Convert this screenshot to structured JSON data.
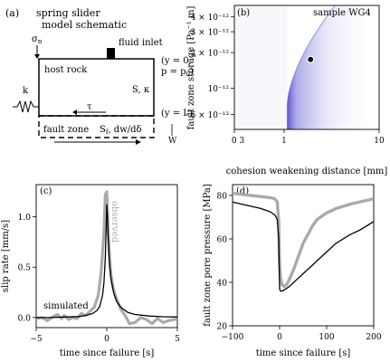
{
  "panel_a": {
    "letter": "(a)",
    "title_line1": "spring slider",
    "title_line2": "model schematic",
    "sigma_label": "σ",
    "sigma_sub": "n",
    "fluid_inlet": "fluid inlet",
    "host_rock": "host rock",
    "y0_line1": "(y = 0,",
    "y0_line2": "p = p",
    "y0_sub": "0",
    "y0_close": ")",
    "S_kappa": "S, κ",
    "k_label": "k",
    "tau_label": "τ",
    "yL_label": "(y = L)",
    "fault_zone": "fault zone",
    "Sf_label": "S",
    "Sf_sub": "f",
    "Sf_rest": ", dw/dδ",
    "W_label": "W"
  },
  "chart_data": [
    {
      "panel": "(b)",
      "type": "heatmap",
      "title": "",
      "annotation": "sample WG4",
      "xlabel": "cohesion weakening distance [mm]",
      "ylabel": "fault zone storage [Pa⁻¹ m]",
      "xscale": "log",
      "yscale": "log",
      "xlim": [
        0.3,
        10
      ],
      "ylim": [
        4.5e-13,
        5e-12
      ],
      "x_tick_labels": [
        "0 3",
        "1",
        "10"
      ],
      "y_tick_labels": [
        "4 × 10⁻¹²",
        "3 × 10⁻¹²",
        "2 × 10⁻¹²",
        "10⁻¹²",
        "6 × 10⁻¹³"
      ],
      "best_fit_point": {
        "x": 1.9,
        "y": 1.75e-12
      },
      "colormap": "white-to-purple",
      "colors": {
        "fill": "#2a1fc0",
        "point": "#000000"
      }
    },
    {
      "panel": "(c)",
      "type": "line",
      "title": "",
      "xlabel": "time since failure [s]",
      "ylabel": "slip rate [mm/s]",
      "xlim": [
        -5,
        5
      ],
      "ylim": [
        -0.1,
        1.32
      ],
      "x_tick_labels": [
        "−5",
        "0",
        "5"
      ],
      "y_tick_labels": [
        "0.0",
        "0.5",
        "1.0"
      ],
      "series": [
        {
          "name": "observed",
          "color": "#aaaaaa",
          "x": [
            -5.0,
            -4.6,
            -4.2,
            -3.8,
            -3.5,
            -3.2,
            -3.0,
            -2.7,
            -2.4,
            -2.1,
            -1.8,
            -1.5,
            -1.2,
            -0.9,
            -0.6,
            -0.4,
            -0.2,
            -0.1,
            0.0,
            0.05,
            0.1,
            0.2,
            0.3,
            0.45,
            0.6,
            0.8,
            1.0,
            1.3,
            1.6,
            2.0,
            2.4,
            2.8,
            3.2,
            3.6,
            4.0,
            4.4,
            4.8,
            5.0
          ],
          "y": [
            -0.01,
            0.0,
            -0.03,
            0.01,
            0.03,
            -0.01,
            0.02,
            -0.02,
            0.0,
            -0.01,
            0.04,
            0.02,
            0.06,
            0.1,
            0.22,
            0.45,
            0.85,
            1.22,
            1.25,
            1.05,
            0.85,
            0.6,
            0.42,
            0.3,
            0.22,
            0.15,
            0.08,
            0.02,
            -0.06,
            -0.05,
            0.0,
            -0.02,
            -0.06,
            -0.01,
            -0.05,
            -0.03,
            -0.02,
            -0.01
          ]
        },
        {
          "name": "simulated",
          "color": "#000000",
          "x": [
            -5.0,
            -4.0,
            -3.0,
            -2.0,
            -1.5,
            -1.0,
            -0.7,
            -0.5,
            -0.3,
            -0.2,
            -0.1,
            -0.05,
            0.0,
            0.05,
            0.1,
            0.2,
            0.3,
            0.5,
            0.7,
            1.0,
            1.5,
            2.0,
            3.0,
            4.0,
            5.0
          ],
          "y": [
            0.0,
            0.0,
            0.005,
            0.01,
            0.02,
            0.04,
            0.07,
            0.11,
            0.22,
            0.35,
            0.6,
            0.85,
            1.12,
            1.0,
            0.78,
            0.52,
            0.38,
            0.24,
            0.16,
            0.1,
            0.05,
            0.03,
            0.015,
            0.008,
            0.005
          ]
        }
      ],
      "annotations": [
        "observed",
        "simulated"
      ]
    },
    {
      "panel": "(d)",
      "type": "line",
      "title": "",
      "xlabel": "time since failure [s]",
      "ylabel": "fault zone pore pressure [MPa]",
      "xlim": [
        -100,
        200
      ],
      "ylim": [
        20,
        85
      ],
      "x_tick_labels": [
        "−100",
        "0",
        "100",
        "200"
      ],
      "y_tick_labels": [
        "20",
        "40",
        "60",
        "80"
      ],
      "series": [
        {
          "name": "observed",
          "color": "#aaaaaa",
          "x": [
            -100,
            -80,
            -60,
            -40,
            -20,
            -10,
            -5,
            -2,
            0,
            2,
            5,
            10,
            15,
            20,
            30,
            40,
            50,
            60,
            70,
            80,
            100,
            120,
            150,
            180,
            200
          ],
          "y": [
            81,
            80.5,
            80,
            79.5,
            79,
            78.5,
            77,
            68,
            48,
            42,
            39,
            38,
            39,
            41,
            46,
            52,
            58,
            62,
            66,
            69,
            72,
            74,
            76,
            77.5,
            78.5
          ]
        },
        {
          "name": "simulated",
          "color": "#000000",
          "x": [
            -100,
            -80,
            -60,
            -40,
            -20,
            -10,
            -5,
            -2,
            0,
            2,
            5,
            10,
            20,
            30,
            40,
            50,
            60,
            80,
            100,
            120,
            150,
            170,
            200
          ],
          "y": [
            77,
            76,
            75,
            74,
            72.5,
            71,
            69,
            60,
            37,
            36,
            36,
            36.5,
            38,
            40,
            42,
            44,
            46,
            50,
            54,
            58,
            62,
            64,
            68
          ]
        }
      ]
    }
  ]
}
